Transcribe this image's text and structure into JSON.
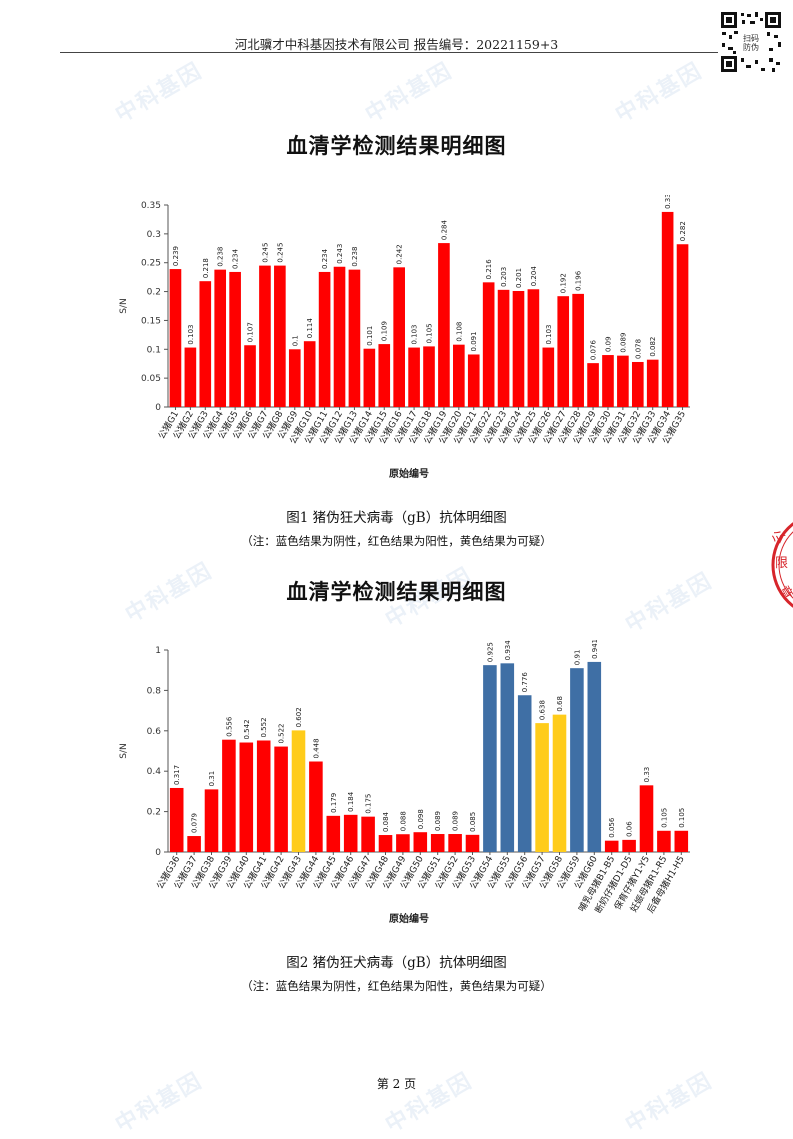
{
  "header": {
    "text": "河北骥才中科基因技术有限公司 报告编号：20221159+3",
    "qr_label": "扫码防伪"
  },
  "watermark_text": "中科基因",
  "charts": [
    {
      "title": "血清学检测结果明细图",
      "caption": "图1 猪伪狂犬病毒（gB）抗体明细图",
      "note": "（注：蓝色结果为阴性，红色结果为阳性，黄色结果为可疑）"
    },
    {
      "title": "血清学检测结果明细图",
      "caption": "图2 猪伪狂犬病毒（gB）抗体明细图",
      "note": "（注：蓝色结果为阴性，红色结果为阳性，黄色结果为可疑）"
    }
  ],
  "colors": {
    "red": "#ff0000",
    "yellow": "#ffcc1a",
    "blue": "#3f6fa5"
  },
  "chart_data": [
    {
      "type": "bar",
      "ylabel": "S/N",
      "xlabel": "原始编号",
      "ylim": [
        0,
        0.35
      ],
      "yticks": [
        0,
        0.05,
        0.1,
        0.15,
        0.2,
        0.25,
        0.3,
        0.35
      ],
      "grid": false,
      "categories": [
        "公猪G1",
        "公猪G2",
        "公猪G3",
        "公猪G4",
        "公猪G5",
        "公猪G6",
        "公猪G7",
        "公猪G8",
        "公猪G9",
        "公猪G10",
        "公猪G11",
        "公猪G12",
        "公猪G13",
        "公猪G14",
        "公猪G15",
        "公猪G16",
        "公猪G17",
        "公猪G18",
        "公猪G19",
        "公猪G20",
        "公猪G21",
        "公猪G22",
        "公猪G23",
        "公猪G24",
        "公猪G25",
        "公猪G26",
        "公猪G27",
        "公猪G28",
        "公猪G29",
        "公猪G30",
        "公猪G31",
        "公猪G32",
        "公猪G33",
        "公猪G34",
        "公猪G35"
      ],
      "values": [
        0.239,
        0.103,
        0.218,
        0.238,
        0.234,
        0.107,
        0.245,
        0.245,
        0.1,
        0.114,
        0.234,
        0.243,
        0.238,
        0.101,
        0.109,
        0.242,
        0.103,
        0.105,
        0.284,
        0.108,
        0.091,
        0.216,
        0.203,
        0.201,
        0.204,
        0.103,
        0.192,
        0.196,
        0.076,
        0.09,
        0.089,
        0.078,
        0.082,
        0.338,
        0.282
      ],
      "bar_colors": [
        "red",
        "red",
        "red",
        "red",
        "red",
        "red",
        "red",
        "red",
        "red",
        "red",
        "red",
        "red",
        "red",
        "red",
        "red",
        "red",
        "red",
        "red",
        "red",
        "red",
        "red",
        "red",
        "red",
        "red",
        "red",
        "red",
        "red",
        "red",
        "red",
        "red",
        "red",
        "red",
        "red",
        "red",
        "red"
      ]
    },
    {
      "type": "bar",
      "ylabel": "S/N",
      "xlabel": "原始编号",
      "ylim": [
        0,
        1
      ],
      "yticks": [
        0,
        0.2,
        0.4,
        0.6,
        0.8,
        1
      ],
      "grid": false,
      "categories": [
        "公猪G36",
        "公猪G37",
        "公猪G38",
        "公猪G39",
        "公猪G40",
        "公猪G41",
        "公猪G42",
        "公猪G43",
        "公猪G44",
        "公猪G45",
        "公猪G46",
        "公猪G47",
        "公猪G48",
        "公猪G49",
        "公猪G50",
        "公猪G51",
        "公猪G52",
        "公猪G53",
        "公猪G54",
        "公猪G55",
        "公猪G56",
        "公猪G57",
        "公猪G58",
        "公猪G59",
        "公猪G60",
        "哺乳母猪B1-B5",
        "断奶仔猪D1-D5",
        "保育仔猪Y1-Y5",
        "妊娠母猪R1-R5",
        "后备母猪H1-H5"
      ],
      "values": [
        0.317,
        0.079,
        0.31,
        0.556,
        0.542,
        0.552,
        0.522,
        0.602,
        0.448,
        0.179,
        0.184,
        0.175,
        0.084,
        0.088,
        0.098,
        0.089,
        0.089,
        0.085,
        0.925,
        0.934,
        0.776,
        0.638,
        0.68,
        0.91,
        0.941,
        0.056,
        0.06,
        0.33,
        0.105,
        0.105
      ],
      "bar_colors": [
        "red",
        "red",
        "red",
        "red",
        "red",
        "red",
        "red",
        "yellow",
        "red",
        "red",
        "red",
        "red",
        "red",
        "red",
        "red",
        "red",
        "red",
        "red",
        "blue",
        "blue",
        "blue",
        "yellow",
        "yellow",
        "blue",
        "blue",
        "red",
        "red",
        "red",
        "red",
        "red"
      ]
    }
  ],
  "footer": {
    "page": "第 2 页"
  }
}
